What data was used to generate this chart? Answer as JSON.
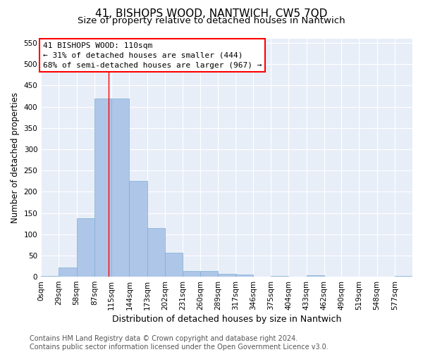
{
  "title": "41, BISHOPS WOOD, NANTWICH, CW5 7QD",
  "subtitle": "Size of property relative to detached houses in Nantwich",
  "xlabel": "Distribution of detached houses by size in Nantwich",
  "ylabel": "Number of detached properties",
  "bar_color": "#aec6e8",
  "bar_edge_color": "#7bafd4",
  "background_color": "#e8eef8",
  "grid_color": "#ffffff",
  "bin_edges": [
    0,
    29,
    58,
    87,
    115,
    144,
    173,
    202,
    231,
    260,
    289,
    317,
    346,
    375,
    404,
    433,
    462,
    490,
    519,
    548,
    577,
    606
  ],
  "bar_heights": [
    2,
    22,
    138,
    420,
    420,
    225,
    115,
    57,
    13,
    14,
    7,
    5,
    0,
    1,
    0,
    3,
    0,
    0,
    0,
    0,
    1
  ],
  "tick_labels": [
    "0sqm",
    "29sqm",
    "58sqm",
    "87sqm",
    "115sqm",
    "144sqm",
    "173sqm",
    "202sqm",
    "231sqm",
    "260sqm",
    "289sqm",
    "317sqm",
    "346sqm",
    "375sqm",
    "404sqm",
    "433sqm",
    "462sqm",
    "490sqm",
    "519sqm",
    "548sqm",
    "577sqm"
  ],
  "red_line_x": 110,
  "ylim": [
    0,
    560
  ],
  "yticks": [
    0,
    50,
    100,
    150,
    200,
    250,
    300,
    350,
    400,
    450,
    500,
    550
  ],
  "annotation_line1": "41 BISHOPS WOOD: 110sqm",
  "annotation_line2": "← 31% of detached houses are smaller (444)",
  "annotation_line3": "68% of semi-detached houses are larger (967) →",
  "footer_text": "Contains HM Land Registry data © Crown copyright and database right 2024.\nContains public sector information licensed under the Open Government Licence v3.0.",
  "title_fontsize": 11,
  "subtitle_fontsize": 9.5,
  "xlabel_fontsize": 9,
  "ylabel_fontsize": 8.5,
  "tick_fontsize": 7.5,
  "annotation_fontsize": 8,
  "footer_fontsize": 7
}
